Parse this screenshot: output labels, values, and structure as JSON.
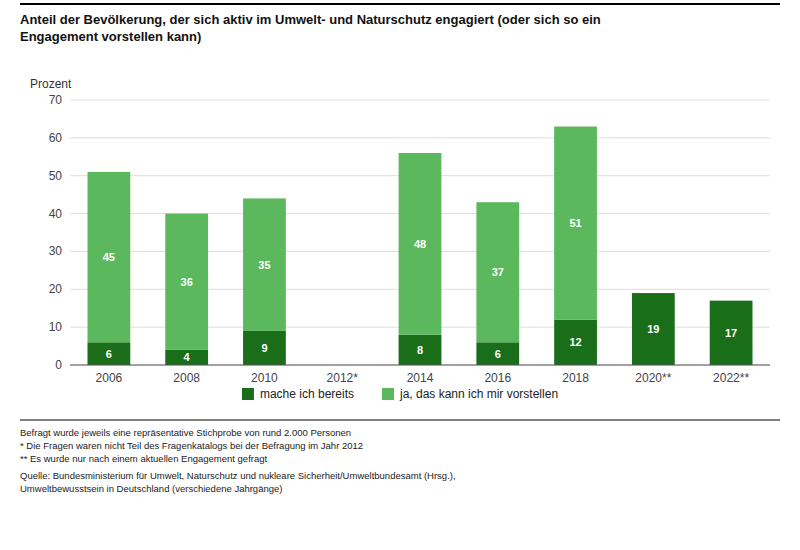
{
  "chart_data": {
    "type": "bar",
    "stacked": true,
    "title": "Anteil der Bevölkerung, der sich aktiv im Umwelt- und Naturschutz engagiert (oder sich so ein\nEngagement vorstellen kann)",
    "y_label": "Prozent",
    "categories": [
      "2006",
      "2008",
      "2010",
      "2012*",
      "2014",
      "2016",
      "2018",
      "2020**",
      "2022**"
    ],
    "series": [
      {
        "name": "mache ich bereits",
        "color": "#1a6e1a",
        "values": [
          6,
          4,
          9,
          null,
          8,
          6,
          12,
          19,
          17
        ]
      },
      {
        "name": "ja, das kann ich mir vorstellen",
        "color": "#5cb85c",
        "values": [
          45,
          36,
          35,
          null,
          48,
          37,
          51,
          null,
          null
        ]
      }
    ],
    "ylim": [
      0,
      70
    ],
    "yticks": [
      0,
      10,
      20,
      30,
      40,
      50,
      60,
      70
    ],
    "grid": true,
    "legend": "bottom",
    "data_labels": true,
    "annotations": [
      "Befragt wurde jeweils eine repräsentative Stichprobe von rund 2.000 Personen\n* Die Fragen waren nicht Teil des Fragenkatalogs bei der Befragung im Jahr 2012\n** Es wurde nur nach einem aktuellen Engagement gefragt",
      "Quelle: Bundesministerium für Umwelt, Naturschutz und nukleare Sicherheit/Umweltbundesamt (Hrsg.),\nUmweltbewusstsein in Deutschland (verschiedene Jahrgänge)"
    ]
  }
}
